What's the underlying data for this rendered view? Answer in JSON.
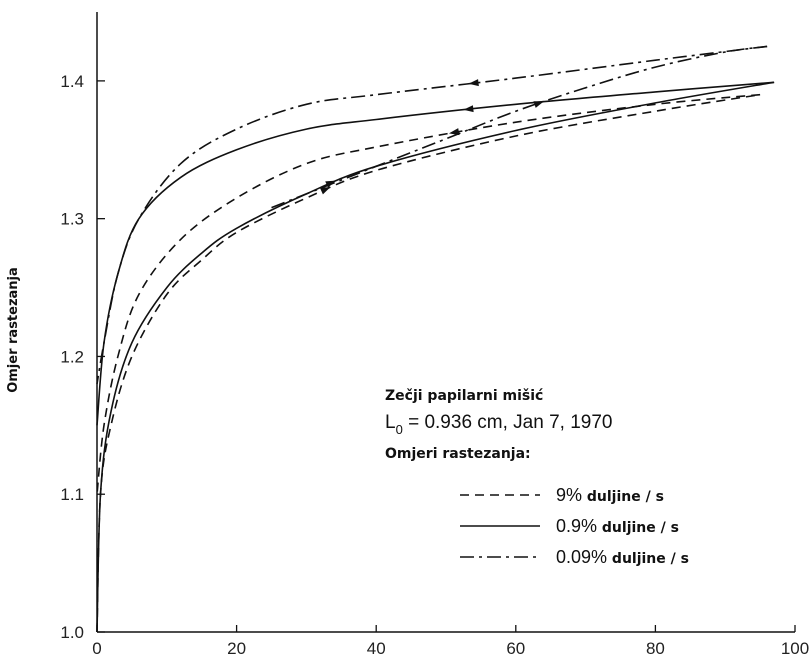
{
  "chart_data": {
    "type": "line",
    "xlabel": "",
    "ylabel": "Omjer rastezanja",
    "xlim": [
      0,
      100
    ],
    "ylim": [
      1.0,
      1.45
    ],
    "x_ticks": [
      "0",
      "20",
      "40",
      "60",
      "80",
      "100"
    ],
    "x_tick_values": [
      0,
      20,
      40,
      60,
      80,
      100
    ],
    "y_ticks": [
      "1.0",
      "1.1",
      "1.2",
      "1.3",
      "1.4"
    ],
    "y_tick_values": [
      1.0,
      1.1,
      1.2,
      1.3,
      1.4
    ],
    "grid": false,
    "annotation": {
      "title": "Zečji papilarni mišić",
      "l_symbol": "L",
      "l_subscript": "0",
      "l_value": " = 0.936 cm, Jan 7, 1970",
      "rates_heading": "Omjeri rastezanja:"
    },
    "legend": {
      "position": "bottom-right",
      "entries": [
        {
          "dash": "dashed",
          "prefix": "9%",
          "suffix": " duljine / s"
        },
        {
          "dash": "solid",
          "prefix": "0.9%",
          "suffix": " duljine / s"
        },
        {
          "dash": "dashdot",
          "prefix": "0.09%",
          "suffix": " duljine / s"
        }
      ]
    },
    "series": [
      {
        "dash": "dashed",
        "loading": [
          [
            0,
            1.0
          ],
          [
            0.5,
            1.1
          ],
          [
            2,
            1.15
          ],
          [
            5,
            1.2
          ],
          [
            10,
            1.245
          ],
          [
            15,
            1.27
          ],
          [
            20,
            1.29
          ],
          [
            30,
            1.315
          ],
          [
            40,
            1.335
          ],
          [
            60,
            1.36
          ],
          [
            80,
            1.378
          ],
          [
            95,
            1.39
          ]
        ],
        "unloading": [
          [
            95,
            1.39
          ],
          [
            80,
            1.383
          ],
          [
            60,
            1.37
          ],
          [
            40,
            1.352
          ],
          [
            30,
            1.34
          ],
          [
            20,
            1.315
          ],
          [
            12,
            1.285
          ],
          [
            6,
            1.245
          ],
          [
            3,
            1.2
          ],
          [
            1,
            1.15
          ],
          [
            0,
            1.1
          ]
        ]
      },
      {
        "dash": "solid",
        "loading": [
          [
            0,
            1.0
          ],
          [
            0.5,
            1.1
          ],
          [
            2,
            1.16
          ],
          [
            5,
            1.21
          ],
          [
            10,
            1.25
          ],
          [
            15,
            1.275
          ],
          [
            20,
            1.293
          ],
          [
            30,
            1.318
          ],
          [
            40,
            1.338
          ],
          [
            60,
            1.364
          ],
          [
            80,
            1.384
          ],
          [
            97,
            1.399
          ]
        ],
        "unloading": [
          [
            97,
            1.399
          ],
          [
            80,
            1.392
          ],
          [
            60,
            1.383
          ],
          [
            40,
            1.372
          ],
          [
            30,
            1.365
          ],
          [
            20,
            1.35
          ],
          [
            12,
            1.33
          ],
          [
            6,
            1.3
          ],
          [
            3,
            1.26
          ],
          [
            1,
            1.21
          ],
          [
            0,
            1.15
          ]
        ]
      },
      {
        "dash": "dashdot",
        "loading": [
          [
            25,
            1.308
          ],
          [
            30,
            1.318
          ],
          [
            40,
            1.338
          ],
          [
            50,
            1.358
          ],
          [
            60,
            1.378
          ],
          [
            70,
            1.395
          ],
          [
            80,
            1.41
          ],
          [
            90,
            1.421
          ],
          [
            96,
            1.425
          ]
        ],
        "unloading": [
          [
            96,
            1.425
          ],
          [
            80,
            1.415
          ],
          [
            60,
            1.402
          ],
          [
            40,
            1.39
          ],
          [
            30,
            1.383
          ],
          [
            20,
            1.365
          ],
          [
            12,
            1.34
          ],
          [
            6,
            1.3
          ],
          [
            3,
            1.26
          ],
          [
            1,
            1.21
          ],
          [
            0,
            1.18
          ]
        ]
      }
    ]
  }
}
